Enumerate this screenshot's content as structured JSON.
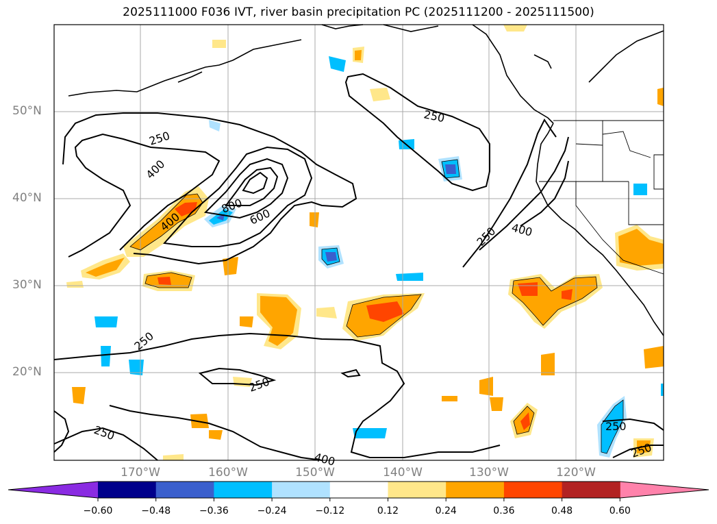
{
  "title": "2025111000 F036 IVT, river basin precipitation PC (2025111200 - 2025111500)",
  "lat_labels": [
    "50°N",
    "40°N",
    "30°N",
    "20°N"
  ],
  "lon_labels": [
    "170°W",
    "160°W",
    "150°W",
    "140°W",
    "130°W",
    "120°W"
  ],
  "contour_labels": [
    "250",
    "400",
    "250",
    "400",
    "600",
    "800",
    "250",
    "400",
    "250",
    "250",
    "250",
    "400",
    "250",
    "250"
  ],
  "colorbar": {
    "ticks": [
      "−0.60",
      "−0.48",
      "−0.36",
      "−0.24",
      "−0.12",
      "0.12",
      "0.24",
      "0.36",
      "0.48",
      "0.60"
    ],
    "colors": [
      "#8a2be2",
      "#00008b",
      "#3a5fcd",
      "#00bfff",
      "#b0e2ff",
      "#ffffff",
      "#ffe78a",
      "#ffa500",
      "#ff4500",
      "#b22222",
      "#ff82ab"
    ]
  }
}
